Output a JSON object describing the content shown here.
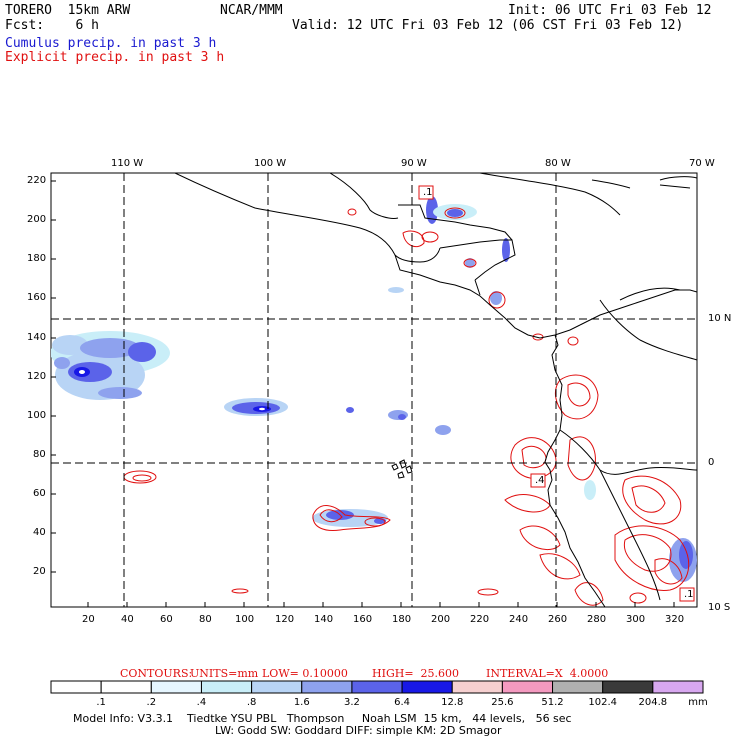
{
  "header": {
    "model": "TORERO  15km ARW",
    "org": "NCAR/MMM",
    "init": "Init: 06 UTC Fri 03 Feb 12",
    "fcst": "Fcst:    6 h",
    "valid": "Valid: 12 UTC Fri 03 Feb 12 (06 CST Fri 03 Feb 12)",
    "cumulus": "Cumulus precip. in past 3 h",
    "explicit": "Explicit precip. in past 3 h"
  },
  "map": {
    "lon_labels": [
      "110 W",
      "100 W",
      "90 W",
      "80 W",
      "70 W"
    ],
    "lat_labels": [
      "10 N",
      "0",
      "10 S"
    ],
    "y_ticks": [
      "220",
      "200",
      "180",
      "160",
      "140",
      "120",
      "100",
      "80",
      "60",
      "40",
      "20"
    ],
    "x_ticks": [
      "20",
      "40",
      "60",
      "80",
      "100",
      "120",
      "140",
      "160",
      "180",
      "200",
      "220",
      "240",
      "260",
      "280",
      "300",
      "320"
    ],
    "markers": [
      ".1",
      ".4",
      ".1"
    ]
  },
  "contours": {
    "label": "CONTOURS:",
    "units": "UNITS=mm",
    "low": "LOW= 0.10000",
    "high": "HIGH=  25.600",
    "interval": "INTERVAL=X  4.0000"
  },
  "colorbar": {
    "labels": [
      ".1",
      ".2",
      ".4",
      ".8",
      "1.6",
      "3.2",
      "6.4",
      "12.8",
      "25.6",
      "51.2",
      "102.4",
      "204.8",
      "mm"
    ],
    "colors": [
      "#ffffff",
      "#ffffff",
      "#e6f6ff",
      "#c9eef8",
      "#b8d4f5",
      "#8ea2ee",
      "#5b63e9",
      "#1818e6",
      "#f6d0d0",
      "#f49ac0",
      "#b0b0b0",
      "#3a3a3a",
      "#d8a8f0"
    ]
  },
  "footer": {
    "line1": "Model Info: V3.3.1    Tiedtke YSU PBL   Thompson     Noah LSM  15 km,   44 levels,   56 sec",
    "line2": "LW: Godd SW: Goddard DIFF: simple KM: 2D Smagor"
  }
}
